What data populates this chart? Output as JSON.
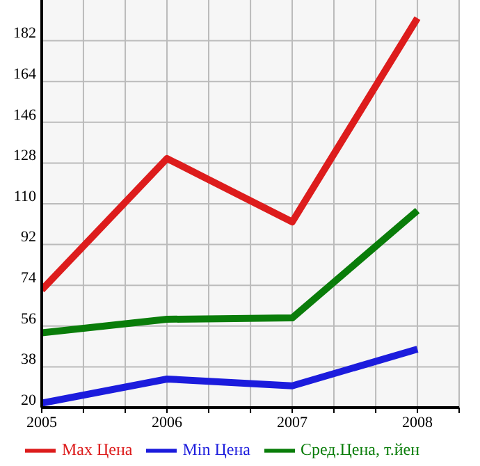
{
  "chart_data": {
    "type": "line",
    "x": [
      2005,
      2006,
      2007,
      2008
    ],
    "series": [
      {
        "name": "Max Цена",
        "color": "#dd1c1c",
        "values": [
          72,
          130,
          102,
          192
        ]
      },
      {
        "name": "Min Цена",
        "color": "#1c1cdd",
        "values": [
          22,
          32.6,
          29.6,
          45.8
        ]
      },
      {
        "name": "Сред.Цена, т.йен",
        "color": "#0a7d0a",
        "values": [
          53,
          59,
          59.6,
          107
        ]
      }
    ],
    "xlim": [
      2005,
      2008.333
    ],
    "xticks": [
      2005,
      {
        "value": 2005.333,
        "label": null
      },
      {
        "value": 2005.667,
        "label": null
      },
      2006,
      {
        "value": 2006.333,
        "label": null
      },
      {
        "value": 2006.667,
        "label": null
      },
      2007,
      {
        "value": 2007.333,
        "label": null
      },
      {
        "value": 2007.667,
        "label": null
      },
      2008,
      {
        "value": 2008.333,
        "label": null
      }
    ],
    "ylim": [
      20,
      200
    ],
    "yticks": [
      20,
      38,
      56,
      74,
      92,
      110,
      128,
      146,
      164,
      182
    ],
    "grid": true,
    "legend": "bottom",
    "marker": "none",
    "line_style": "solid"
  }
}
